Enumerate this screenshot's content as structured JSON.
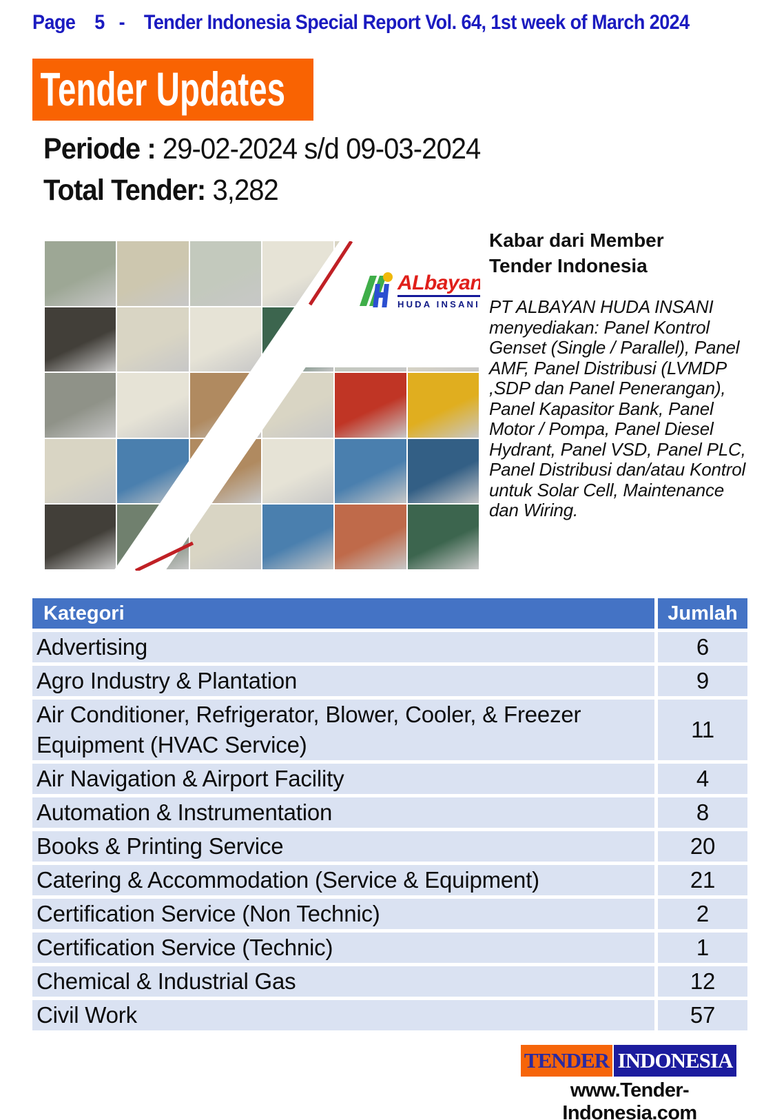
{
  "page": {
    "header_text": "Page    5   -    Tender Indonesia Special Report Vol. 64, 1st week of March 2024",
    "banner_title": "Tender Updates",
    "periode_label": "Periode :",
    "periode_value": "29-02-2024 s/d 09-03-2024",
    "total_label": "Total Tender:",
    "total_value": "3,282"
  },
  "member_note": {
    "heading_line1": "Kabar dari Member",
    "heading_line2": "Tender Indonesia",
    "body": "PT ALBAYAN HUDA INSANI menyediakan: Panel Kontrol Genset (Single / Parallel), Panel AMF, Panel Distribusi (LVMDP ,SDP dan Panel Penerangan), Panel Kapasitor Bank, Panel Motor / Pompa, Panel Diesel Hydrant, Panel VSD, Panel PLC,  Panel Distribusi dan/atau Kontrol untuk Solar Cell, Maintenance dan Wiring."
  },
  "collage": {
    "logo": {
      "brand": "ALbayan",
      "sub": "HUDA INSANI"
    },
    "grid": {
      "cols": 6,
      "rows": 5,
      "cw": 105.33,
      "rh": 95.6
    },
    "palette": [
      "#d9d5c4",
      "#cdc7af",
      "#e6e3d6",
      "#9da795",
      "#3c654e",
      "#70806e",
      "#c3c9bd",
      "#4a7fae",
      "#335f85",
      "#b08a60",
      "#c03525",
      "#e0ae1f",
      "#423f39",
      "#8f9288",
      "#bf6a4a"
    ],
    "tiles": [
      [
        0,
        0,
        3
      ],
      [
        1,
        0,
        1
      ],
      [
        2,
        0,
        6
      ],
      [
        3,
        0,
        2
      ],
      [
        4,
        0,
        0
      ],
      [
        5,
        0,
        2
      ],
      [
        0,
        1,
        12
      ],
      [
        1,
        1,
        0
      ],
      [
        2,
        1,
        2
      ],
      [
        3,
        1,
        4
      ],
      [
        4,
        1,
        6
      ],
      [
        5,
        1,
        0
      ],
      [
        0,
        2,
        13
      ],
      [
        1,
        2,
        2
      ],
      [
        2,
        2,
        9
      ],
      [
        3,
        2,
        0
      ],
      [
        4,
        2,
        10
      ],
      [
        5,
        2,
        11
      ],
      [
        0,
        3,
        0
      ],
      [
        1,
        3,
        7
      ],
      [
        2,
        3,
        9
      ],
      [
        3,
        3,
        2
      ],
      [
        4,
        3,
        7
      ],
      [
        5,
        3,
        8
      ],
      [
        0,
        4,
        12
      ],
      [
        1,
        4,
        5
      ],
      [
        2,
        4,
        0
      ],
      [
        3,
        4,
        7
      ],
      [
        4,
        4,
        14
      ],
      [
        5,
        4,
        4
      ]
    ]
  },
  "table": {
    "headers": [
      "Kategori",
      "Jumlah"
    ],
    "rows": [
      {
        "kategori": "Advertising",
        "jumlah": "6"
      },
      {
        "kategori": "Agro Industry & Plantation",
        "jumlah": "9"
      },
      {
        "kategori": "Air Conditioner, Refrigerator, Blower, Cooler, & Freezer Equipment (HVAC Service)",
        "jumlah": "11"
      },
      {
        "kategori": "Air Navigation & Airport Facility",
        "jumlah": "4"
      },
      {
        "kategori": "Automation & Instrumentation",
        "jumlah": "8"
      },
      {
        "kategori": "Books & Printing Service",
        "jumlah": "20"
      },
      {
        "kategori": "Catering & Accommodation (Service & Equipment)",
        "jumlah": "21"
      },
      {
        "kategori": "Certification Service (Non Technic)",
        "jumlah": "2"
      },
      {
        "kategori": "Certification Service (Technic)",
        "jumlah": "1"
      },
      {
        "kategori": "Chemical & Industrial Gas",
        "jumlah": "12"
      },
      {
        "kategori": "Civil Work",
        "jumlah": "57"
      }
    ]
  },
  "footer": {
    "logo_left": "TENDER",
    "logo_right": "INDONESIA",
    "url": "www.Tender-Indonesia.com"
  },
  "colors": {
    "header_blue": "#1b1bc0",
    "banner_orange": "#f96302",
    "table_header_blue": "#4473c5",
    "table_row_blue": "#dae2f2",
    "slash_red": "#c02025",
    "albayan_green": "#3fae49",
    "albayan_blue": "#2b4fd0",
    "albayan_red": "#e01f1a",
    "albayan_yellow": "#f0b90b",
    "footer_orange": "#f6650a",
    "footer_navy": "#1c1c9e"
  }
}
